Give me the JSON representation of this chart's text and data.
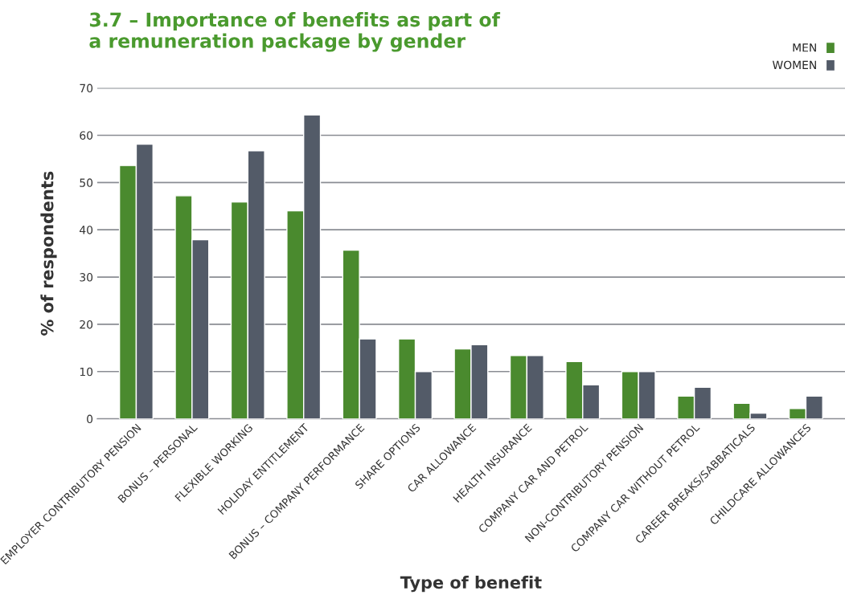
{
  "chart_data": {
    "type": "bar",
    "title": "3.7 – Importance of benefits as part of\na remuneration package by gender",
    "xlabel": "Type of benefit",
    "ylabel": "% of respondents",
    "categories": [
      "EMPLOYER CONTRIBUTORY PENSION",
      "BONUS – PERSONAL",
      "FLEXIBLE WORKING",
      "HOLIDAY ENTITLEMENT",
      "BONUS – COMPANY PERFORMANCE",
      "SHARE OPTIONS",
      "CAR ALLOWANCE",
      "HEALTH INSURANCE",
      "COMPANY CAR AND PETROL",
      "NON-CONTRIBUTORY PENSION",
      "COMPANY CAR WITHOUT PETROL",
      "CAREER BREAKS/SABBATICALS",
      "CHILDCARE ALLOWANCES"
    ],
    "series": [
      {
        "name": "MEN",
        "color": "#4a8a2e",
        "values": [
          53.6,
          47.2,
          45.9,
          44.0,
          35.7,
          16.9,
          14.8,
          13.4,
          12.1,
          10,
          4.8,
          3.3,
          2.2
        ]
      },
      {
        "name": "WOMEN",
        "color": "#535b68",
        "values": [
          58.1,
          37.9,
          56.7,
          64.3,
          16.9,
          10,
          15.7,
          13.4,
          7.2,
          10,
          6.7,
          1.2,
          4.8
        ]
      }
    ],
    "ylim": [
      0,
      70
    ],
    "yticks": [
      0,
      10,
      20,
      30,
      40,
      50,
      60,
      70
    ],
    "grid": "y",
    "legend": "top right"
  }
}
